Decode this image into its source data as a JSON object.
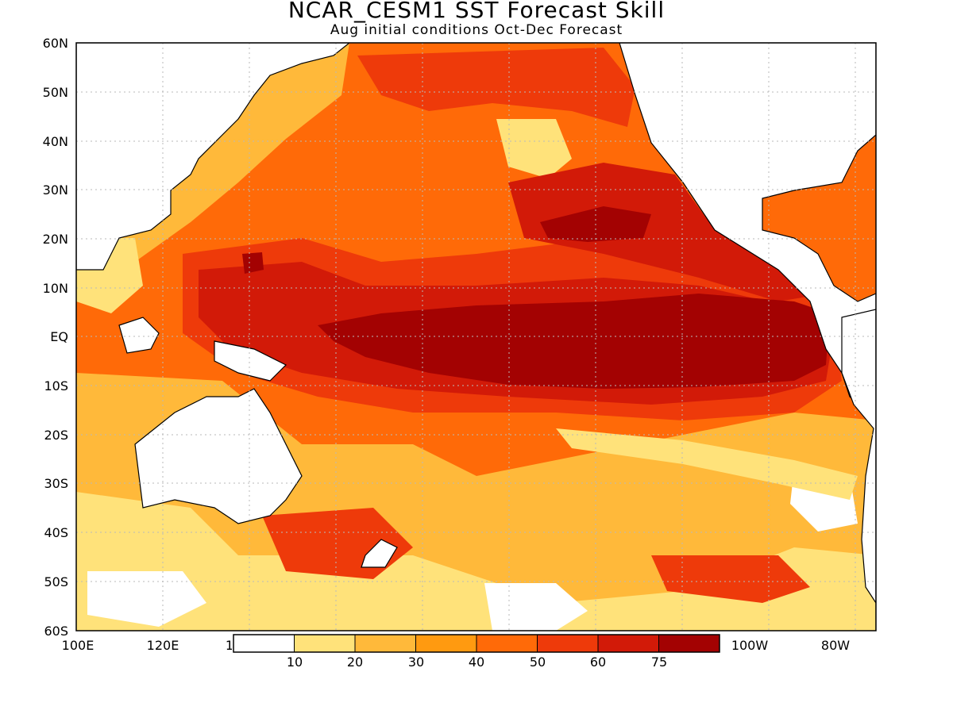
{
  "title": "NCAR_CESM1 SST Forecast Skill",
  "subtitle": "Aug initial conditions  Oct-Dec Forecast",
  "map": {
    "lon_range": [
      100,
      285
    ],
    "lat_range": [
      -60,
      60
    ],
    "lat_labels": [
      "60N",
      "50N",
      "40N",
      "30N",
      "20N",
      "10N",
      "EQ",
      "10S",
      "20S",
      "30S",
      "40S",
      "50S",
      "60S"
    ],
    "lon_labels": [
      "100E",
      "120E",
      "1",
      "100W",
      "80W"
    ]
  },
  "colorbar": {
    "levels": [
      "10",
      "20",
      "30",
      "40",
      "50",
      "60",
      "75"
    ],
    "colors": [
      "#ffffff",
      "#ffe27a",
      "#ffb93a",
      "#ff9a10",
      "#ff6a08",
      "#ee3a0a",
      "#d21a08",
      "#a30202"
    ]
  },
  "colors": {
    "land": "#ffffff",
    "coast": "#000000",
    "grid": "#b9b9b9"
  }
}
